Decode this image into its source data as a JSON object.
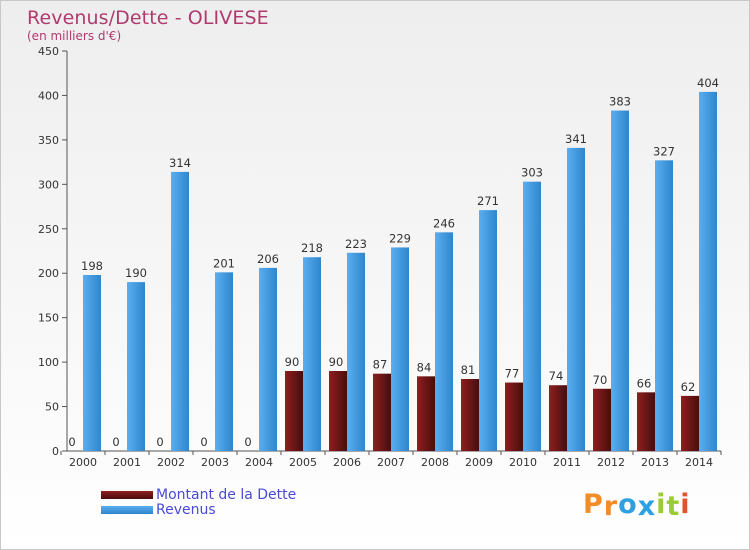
{
  "header": {
    "title": "Revenus/Dette - OLIVESE",
    "subtitle": "(en milliers d'€)"
  },
  "colors": {
    "dette_top": "#8e1f1f",
    "dette_bottom": "#4a0c0c",
    "revenus_top": "#5aaef0",
    "revenus_bottom": "#2f86cc",
    "axis": "#555555",
    "grid": "#d9d9d9"
  },
  "logo": {
    "text": "Proxiti",
    "letter_colors": [
      "#f28c28",
      "#f28c28",
      "#2e9fe0",
      "#2e9fe0",
      "#9acd32",
      "#9acd32",
      "#e2522b"
    ]
  },
  "chart_data": {
    "type": "bar",
    "title": "Revenus/Dette - OLIVESE",
    "subtitle": "(en milliers d'€)",
    "categories": [
      "2000",
      "2001",
      "2002",
      "2003",
      "2004",
      "2005",
      "2006",
      "2007",
      "2008",
      "2009",
      "2010",
      "2011",
      "2012",
      "2013",
      "2014"
    ],
    "series": [
      {
        "name": "Montant de la Dette",
        "values": [
          0,
          0,
          0,
          0,
          0,
          90,
          90,
          87,
          84,
          81,
          77,
          74,
          70,
          66,
          62
        ]
      },
      {
        "name": "Revenus",
        "values": [
          198,
          190,
          314,
          201,
          206,
          218,
          223,
          229,
          246,
          271,
          303,
          341,
          383,
          327,
          404
        ]
      }
    ],
    "ylim": [
      0,
      450
    ],
    "yticks": [
      0,
      50,
      100,
      150,
      200,
      250,
      300,
      350,
      400,
      450
    ],
    "xlabel": "",
    "ylabel": "",
    "grid": false,
    "legend_position": "bottom-left"
  }
}
